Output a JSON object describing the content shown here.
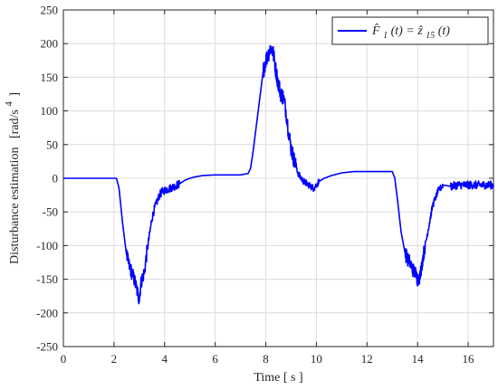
{
  "chart_data": {
    "type": "line",
    "xlabel": "Time [ s ]",
    "ylabel": "Disturbance estimation",
    "ylabel_unit": "[rad/s",
    "ylabel_unit_exp": "4",
    "ylabel_unit_close": "]",
    "xlim": [
      0,
      17
    ],
    "ylim": [
      -250,
      250
    ],
    "xticks": [
      0,
      2,
      4,
      6,
      8,
      10,
      12,
      14,
      16
    ],
    "yticks": [
      -250,
      -200,
      -150,
      -100,
      -50,
      0,
      50,
      100,
      150,
      200,
      250
    ],
    "grid": true,
    "legend_position": "top-right",
    "series": [
      {
        "name": "F̂₁(t) = ẑ₁₅(t)",
        "color": "#0000ff",
        "x": [
          0,
          2.1,
          2.2,
          2.35,
          2.5,
          2.6,
          2.7,
          2.8,
          2.9,
          3.0,
          3.05,
          3.1,
          3.2,
          3.3,
          3.4,
          3.5,
          3.6,
          3.7,
          3.8,
          3.9,
          4.0,
          4.2,
          4.4,
          4.6,
          4.8,
          5.0,
          5.2,
          5.5,
          6.0,
          6.5,
          7.0,
          7.3,
          7.4,
          7.5,
          7.6,
          7.7,
          7.8,
          7.9,
          8.0,
          8.1,
          8.2,
          8.3,
          8.4,
          8.5,
          8.6,
          8.7,
          8.8,
          8.9,
          9.0,
          9.1,
          9.2,
          9.3,
          9.5,
          9.7,
          9.9,
          10.0,
          10.1,
          10.3,
          10.6,
          11.0,
          11.5,
          12.0,
          12.5,
          13.0,
          13.1,
          13.2,
          13.35,
          13.5,
          13.6,
          13.7,
          13.8,
          13.9,
          14.0,
          14.1,
          14.2,
          14.3,
          14.4,
          14.5,
          14.6,
          14.7,
          14.8,
          15.0,
          15.3,
          15.6,
          16.0,
          16.4,
          16.8,
          17.0
        ],
        "y": [
          0,
          0,
          -15,
          -70,
          -115,
          -130,
          -140,
          -150,
          -165,
          -180,
          -160,
          -150,
          -140,
          -110,
          -85,
          -60,
          -45,
          -35,
          -25,
          -20,
          -18,
          -15,
          -12,
          -8,
          -3,
          0,
          2,
          4,
          5,
          5,
          5,
          7,
          15,
          40,
          70,
          100,
          130,
          160,
          175,
          185,
          195,
          185,
          160,
          140,
          125,
          120,
          100,
          70,
          45,
          30,
          18,
          5,
          -5,
          -10,
          -15,
          -10,
          -5,
          0,
          4,
          8,
          10,
          10,
          10,
          10,
          0,
          -30,
          -80,
          -110,
          -120,
          -125,
          -135,
          -140,
          -150,
          -145,
          -120,
          -100,
          -80,
          -60,
          -40,
          -30,
          -20,
          -10,
          -12,
          -10,
          -10,
          -10,
          -10,
          -10
        ]
      }
    ]
  },
  "legend": {
    "label_lhs": "F̂",
    "label_lhs_sub": "1",
    "label_lhs_arg": "(t) = ",
    "label_rhs": "ẑ",
    "label_rhs_sub": "15",
    "label_rhs_arg": "(t)"
  }
}
